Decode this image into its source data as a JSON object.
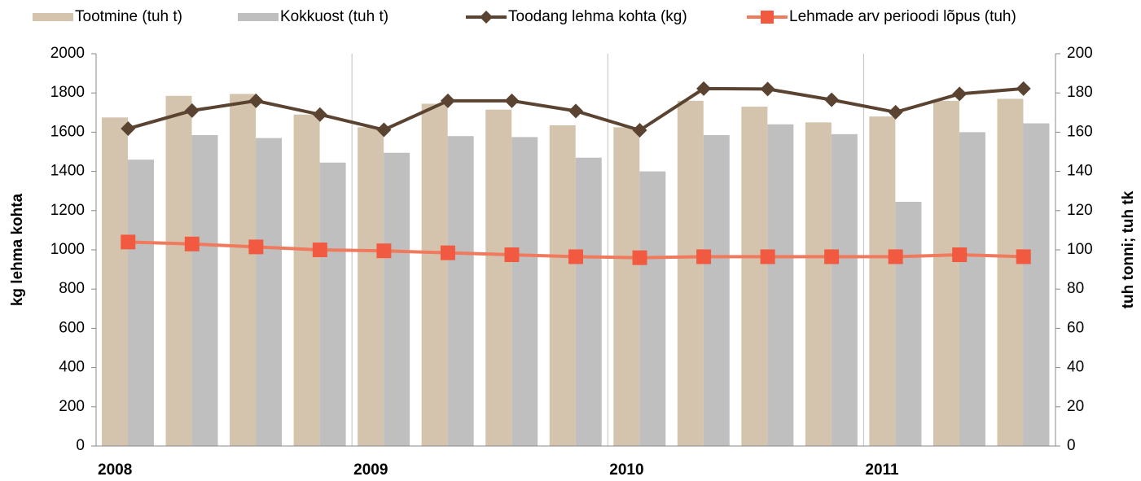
{
  "chart_data": {
    "type": "bar",
    "categories": [
      "2008",
      null,
      null,
      null,
      "2009",
      null,
      null,
      null,
      "2010",
      null,
      null,
      null,
      "2011",
      null,
      null
    ],
    "ylabel": "kg lehma kohta",
    "y2label": "tuh tonni; tuh tk",
    "ylim": [
      0,
      2000
    ],
    "yticks": [
      0,
      200,
      400,
      600,
      800,
      1000,
      1200,
      1400,
      1600,
      1800,
      2000
    ],
    "y2lim": [
      0,
      200
    ],
    "y2ticks": [
      0,
      20,
      40,
      60,
      80,
      100,
      120,
      140,
      160,
      180,
      200
    ],
    "legend": "top",
    "series": [
      {
        "name": "Tootmine (tuh t)",
        "type": "bar",
        "axis": "y2",
        "color": "#d5c4ad",
        "values": [
          167.5,
          178.5,
          179.5,
          169,
          162.5,
          174.5,
          171.5,
          163.5,
          162.5,
          176,
          173,
          165,
          168,
          176,
          177
        ]
      },
      {
        "name": "Kokkuost (tuh t)",
        "type": "bar",
        "axis": "y2",
        "color": "#bfbfbf",
        "values": [
          146,
          158.5,
          157,
          144.5,
          149.5,
          158,
          157.5,
          147,
          140,
          158.5,
          164,
          159,
          124.5,
          160,
          164.5
        ]
      },
      {
        "name": "Toodang lehma kohta (kg)",
        "type": "line",
        "marker": "diamond",
        "color": "#5b4331",
        "values": [
          1618,
          1710,
          1760,
          1690,
          1612,
          1760,
          1760,
          1708,
          1610,
          1822,
          1820,
          1765,
          1702,
          1795,
          1822
        ]
      },
      {
        "name": "Lehmade arv perioodi lõpus (tuh)",
        "type": "line",
        "marker": "square",
        "axis": "y2",
        "color": "#f07a5d",
        "values": [
          104,
          103,
          101.5,
          100,
          99.5,
          98.5,
          97.5,
          96.5,
          96,
          96.5,
          96.5,
          96.5,
          96.5,
          97.5,
          96.5
        ]
      }
    ]
  }
}
